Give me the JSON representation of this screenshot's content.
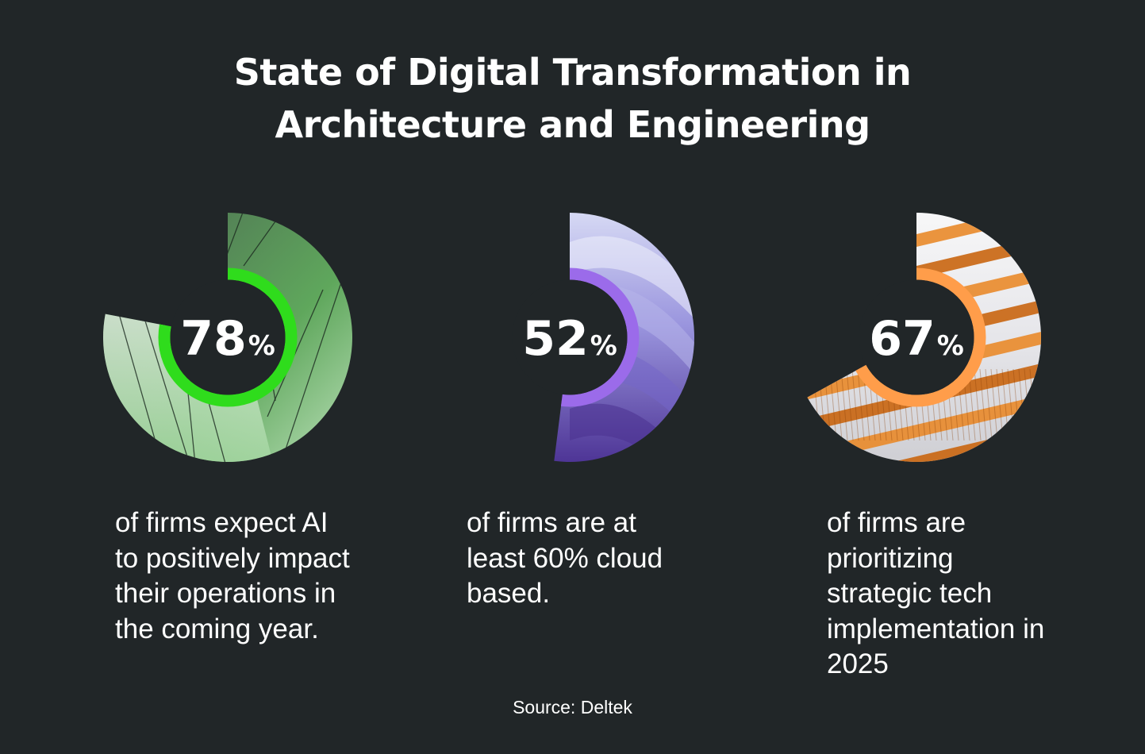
{
  "title": {
    "line1": "State of Digital Transformation in",
    "line2": "Architecture and Engineering"
  },
  "chart_data": [
    {
      "type": "pie",
      "value": 78,
      "value_label": "78",
      "unit": "%",
      "description": "of firms expect AI to positively impact their operations in the coming year.",
      "ring_color": "#2fdc1c",
      "fill_colors": [
        "#4c6a52",
        "#5fa75c",
        "#b9dfb7"
      ]
    },
    {
      "type": "pie",
      "value": 52,
      "value_label": "52",
      "unit": "%",
      "description": "of firms are at least 60% cloud based.",
      "ring_color": "#9b6bea",
      "fill_colors": [
        "#c9cdf1",
        "#8f88d9",
        "#5a3fa3"
      ]
    },
    {
      "type": "pie",
      "value": 67,
      "value_label": "67",
      "unit": "%",
      "description": "of firms are prioritizing strategic tech implementation in 2025",
      "ring_color": "#ff9d4a",
      "fill_colors": [
        "#f4f4f6",
        "#d97a1c",
        "#8a3f07"
      ]
    }
  ],
  "source": "Source: Deltek"
}
